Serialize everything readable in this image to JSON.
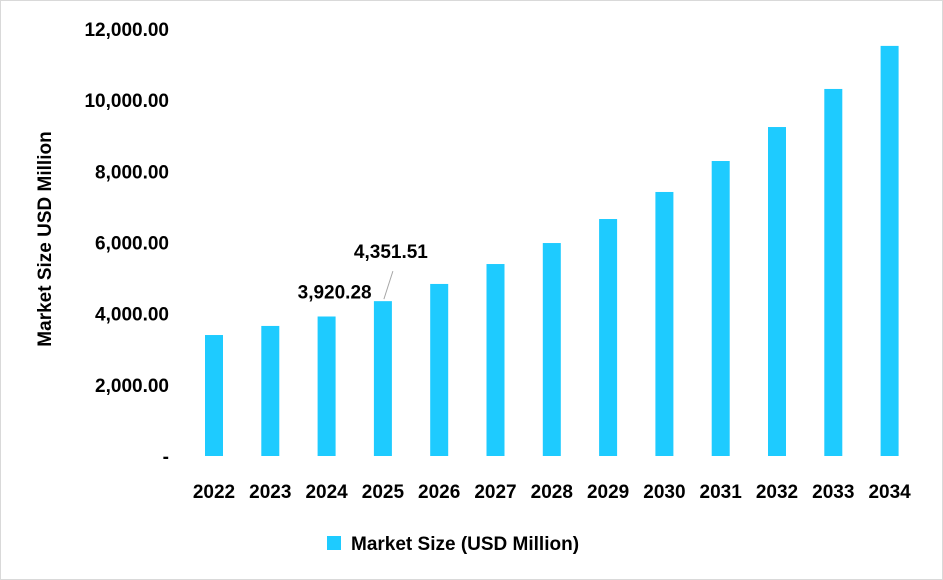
{
  "chart_data": {
    "type": "bar",
    "title": "",
    "xlabel": "",
    "ylabel": "Market Size USD Million",
    "categories": [
      "2022",
      "2023",
      "2024",
      "2025",
      "2026",
      "2027",
      "2028",
      "2029",
      "2030",
      "2031",
      "2032",
      "2033",
      "2034"
    ],
    "series": [
      {
        "name": "Market Size (USD Million)",
        "color": "#1ECBFF",
        "values": [
          3400,
          3655,
          3920.28,
          4351.51,
          4835,
          5395,
          5985,
          6660,
          7420,
          8290,
          9245,
          10315,
          11525
        ]
      }
    ],
    "ylim": [
      0,
      12000
    ],
    "yticks": [
      0,
      2000,
      4000,
      6000,
      8000,
      10000,
      12000
    ],
    "ytick_labels": [
      "-",
      "2,000.00",
      "4,000.00",
      "6,000.00",
      "8,000.00",
      "10,000.00",
      "12,000.00"
    ],
    "data_labels": [
      {
        "category": "2024",
        "text": "3,920.28"
      },
      {
        "category": "2025",
        "text": "4,351.51"
      }
    ],
    "grid": false,
    "legend": "bottom"
  }
}
